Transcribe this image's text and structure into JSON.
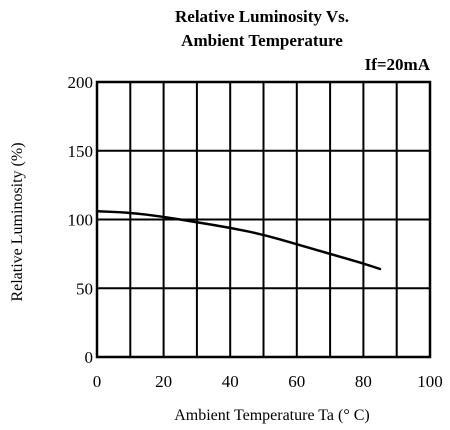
{
  "chart_data": {
    "type": "line",
    "title_line1": "Relative Luminosity Vs.",
    "title_line2": "Ambient Temperature",
    "condition": "If=20mA",
    "xlabel": "Ambient  Temperature  Ta  (° C)",
    "ylabel": "Relative Luminosity (%)",
    "xlim": [
      0,
      100
    ],
    "ylim": [
      0,
      200
    ],
    "x_ticks": [
      0,
      20,
      40,
      60,
      80,
      100
    ],
    "x_tick_labels": [
      "0",
      "20",
      "40",
      "60",
      "80",
      "100"
    ],
    "y_ticks": [
      0,
      50,
      100,
      150,
      200
    ],
    "y_tick_labels": [
      "0",
      "50",
      "100",
      "150",
      "200"
    ],
    "x_grid": [
      10,
      20,
      30,
      40,
      50,
      60,
      70,
      80,
      90,
      100
    ],
    "y_grid": [
      50,
      100,
      150,
      200
    ],
    "grid": true,
    "series": [
      {
        "x": [
          0,
          10,
          20,
          30,
          40,
          50,
          60,
          70,
          80,
          85
        ],
        "y": [
          106,
          105,
          102,
          98,
          94,
          89,
          82,
          75,
          68,
          64
        ]
      }
    ],
    "colors": {
      "line": "#000000",
      "grid": "#000000",
      "background": "#ffffff"
    }
  }
}
